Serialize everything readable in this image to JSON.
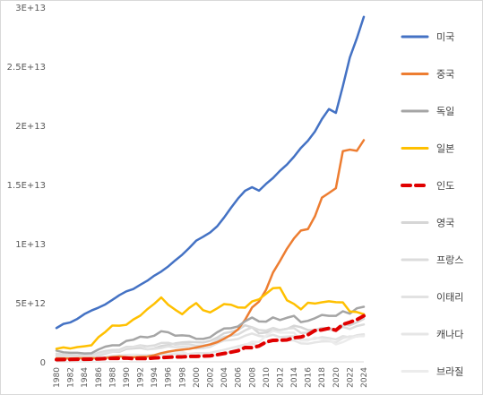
{
  "chart_data": {
    "type": "line",
    "title": "",
    "xlabel": "",
    "ylabel": "",
    "ylim": [
      0,
      30000000000000.0
    ],
    "y_ticks": [
      0,
      5000000000000.0,
      10000000000000.0,
      15000000000000.0,
      20000000000000.0,
      25000000000000.0,
      30000000000000.0
    ],
    "y_tick_labels": [
      "0",
      "5E+12",
      "1E+13",
      "1.5E+13",
      "2E+13",
      "2.5E+13",
      "3E+13"
    ],
    "grid": false,
    "legend_position": "right",
    "x": [
      1980,
      1981,
      1982,
      1983,
      1984,
      1985,
      1986,
      1987,
      1988,
      1989,
      1990,
      1991,
      1992,
      1993,
      1994,
      1995,
      1996,
      1997,
      1998,
      1999,
      2000,
      2001,
      2002,
      2003,
      2004,
      2005,
      2006,
      2007,
      2008,
      2009,
      2010,
      2011,
      2012,
      2013,
      2014,
      2015,
      2016,
      2017,
      2018,
      2019,
      2020,
      2021,
      2022,
      2023,
      2024
    ],
    "x_tick_labels": [
      "1980",
      "1982",
      "1984",
      "1986",
      "1988",
      "1990",
      "1992",
      "1994",
      "1996",
      "1998",
      "2000",
      "2002",
      "2004",
      "2006",
      "2008",
      "2010",
      "2012",
      "2014",
      "2016",
      "2018",
      "2020",
      "2022",
      "2024"
    ],
    "series": [
      {
        "name": "미국",
        "color": "#4472c4",
        "dashed": false,
        "values": [
          2860000000000.0,
          3210000000000.0,
          3340000000000.0,
          3640000000000.0,
          4040000000000.0,
          4340000000000.0,
          4580000000000.0,
          4860000000000.0,
          5240000000000.0,
          5640000000000.0,
          5960000000000.0,
          6160000000000.0,
          6520000000000.0,
          6860000000000.0,
          7290000000000.0,
          7640000000000.0,
          8070000000000.0,
          8580000000000.0,
          9060000000000.0,
          9630000000000.0,
          10250000000000.0,
          10580000000000.0,
          10940000000000.0,
          11460000000000.0,
          12210000000000.0,
          13040000000000.0,
          13820000000000.0,
          14470000000000.0,
          14770000000000.0,
          14480000000000.0,
          15050000000000.0,
          15550000000000.0,
          16160000000000.0,
          16690000000000.0,
          17350000000000.0,
          18100000000000.0,
          18700000000000.0,
          19480000000000.0,
          20530000000000.0,
          21380000000000.0,
          21060000000000.0,
          23320000000000.0,
          25740000000000.0,
          27360000000000.0,
          29180000000000.0
        ]
      },
      {
        "name": "중국",
        "color": "#ed7d31",
        "dashed": false,
        "values": [
          303000000000.0,
          294000000000.0,
          285000000000.0,
          303000000000.0,
          313000000000.0,
          310000000000.0,
          301000000000.0,
          327000000000.0,
          408000000000.0,
          457000000000.0,
          397000000000.0,
          385000000000.0,
          427000000000.0,
          444000000000.0,
          564000000000.0,
          734000000000.0,
          863000000000.0,
          962000000000.0,
          1029000000000.0,
          1094000000000.0,
          1211000000000.0,
          1339000000000.0,
          1471000000000.0,
          1660000000000.0,
          1955000000000.0,
          2286000000000.0,
          2752000000000.0,
          3550000000000.0,
          4594000000000.0,
          5102000000000.0,
          6087000000000.0,
          7552000000000.0,
          8532000000000.0,
          9571000000000.0,
          10440000000000.0,
          11110000000000.0,
          11230000000000.0,
          12310000000000.0,
          13890000000000.0,
          14280000000000.0,
          14690000000000.0,
          17820000000000.0,
          17950000000000.0,
          17850000000000.0,
          18750000000000.0
        ]
      },
      {
        "name": "독일",
        "color": "#a5a5a5",
        "dashed": false,
        "values": [
          950000000000.0,
          810000000000.0,
          770000000000.0,
          770000000000.0,
          710000000000.0,
          730000000000.0,
          1040000000000.0,
          1290000000000.0,
          1400000000000.0,
          1400000000000.0,
          1770000000000.0,
          1870000000000.0,
          2130000000000.0,
          2070000000000.0,
          2210000000000.0,
          2590000000000.0,
          2500000000000.0,
          2220000000000.0,
          2240000000000.0,
          2200000000000.0,
          1950000000000.0,
          1940000000000.0,
          2080000000000.0,
          2500000000000.0,
          2820000000000.0,
          2850000000000.0,
          3000000000000.0,
          3440000000000.0,
          3750000000000.0,
          3420000000000.0,
          3400000000000.0,
          3760000000000.0,
          3540000000000.0,
          3730000000000.0,
          3890000000000.0,
          3360000000000.0,
          3470000000000.0,
          3690000000000.0,
          3970000000000.0,
          3890000000000.0,
          3890000000000.0,
          4280000000000.0,
          4080000000000.0,
          4530000000000.0,
          4660000000000.0
        ]
      },
      {
        "name": "일본",
        "color": "#ffc000",
        "dashed": false,
        "values": [
          1110000000000.0,
          1220000000000.0,
          1130000000000.0,
          1250000000000.0,
          1320000000000.0,
          1400000000000.0,
          2080000000000.0,
          2530000000000.0,
          3070000000000.0,
          3060000000000.0,
          3130000000000.0,
          3580000000000.0,
          3910000000000.0,
          4450000000000.0,
          4910000000000.0,
          5450000000000.0,
          4830000000000.0,
          4410000000000.0,
          4030000000000.0,
          4560000000000.0,
          4970000000000.0,
          4370000000000.0,
          4180000000000.0,
          4520000000000.0,
          4890000000000.0,
          4830000000000.0,
          4600000000000.0,
          4580000000000.0,
          5110000000000.0,
          5290000000000.0,
          5760000000000.0,
          6230000000000.0,
          6270000000000.0,
          5210000000000.0,
          4900000000000.0,
          4440000000000.0,
          5000000000000.0,
          4930000000000.0,
          5040000000000.0,
          5120000000000.0,
          5050000000000.0,
          5030000000000.0,
          4260000000000.0,
          4210000000000.0,
          4030000000000.0
        ]
      },
      {
        "name": "인도",
        "color": "#e00000",
        "dashed": true,
        "values": [
          190000000000.0,
          196000000000.0,
          204000000000.0,
          222000000000.0,
          215000000000.0,
          232000000000.0,
          248000000000.0,
          279000000000.0,
          296000000000.0,
          296000000000.0,
          321000000000.0,
          270000000000.0,
          288000000000.0,
          279000000000.0,
          327000000000.0,
          360000000000.0,
          392000000000.0,
          415000000000.0,
          421000000000.0,
          458000000000.0,
          468000000000.0,
          485000000000.0,
          514000000000.0,
          607000000000.0,
          709000000000.0,
          820000000000.0,
          940000000000.0,
          1216000000000.0,
          1199000000000.0,
          1342000000000.0,
          1676000000000.0,
          1823000000000.0,
          1828000000000.0,
          1857000000000.0,
          2039000000000.0,
          2104000000000.0,
          2295000000000.0,
          2651000000000.0,
          2703000000000.0,
          2836000000000.0,
          2674000000000.0,
          3167000000000.0,
          3353000000000.0,
          3567000000000.0,
          3890000000000.0
        ]
      },
      {
        "name": "영국",
        "color": "#d6d6d6",
        "dashed": false,
        "values": [
          560000000000.0,
          540000000000.0,
          510000000000.0,
          470000000000.0,
          440000000000.0,
          460000000000.0,
          560000000000.0,
          700000000000.0,
          850000000000.0,
          850000000000.0,
          1090000000000.0,
          1140000000000.0,
          1180000000000.0,
          1060000000000.0,
          1140000000000.0,
          1340000000000.0,
          1420000000000.0,
          1560000000000.0,
          1650000000000.0,
          1690000000000.0,
          1660000000000.0,
          1640000000000.0,
          1780000000000.0,
          2050000000000.0,
          2420000000000.0,
          2540000000000.0,
          2710000000000.0,
          3090000000000.0,
          2920000000000.0,
          2410000000000.0,
          2480000000000.0,
          2660000000000.0,
          2700000000000.0,
          2780000000000.0,
          3060000000000.0,
          2930000000000.0,
          2690000000000.0,
          2680000000000.0,
          2870000000000.0,
          2860000000000.0,
          2700000000000.0,
          3140000000000.0,
          3090000000000.0,
          3340000000000.0,
          3640000000000.0
        ]
      },
      {
        "name": "프랑스",
        "color": "#dcdcdc",
        "dashed": false,
        "values": [
          700000000000.0,
          620000000000.0,
          580000000000.0,
          550000000000.0,
          530000000000.0,
          550000000000.0,
          770000000000.0,
          920000000000.0,
          1000000000000.0,
          1020000000000.0,
          1270000000000.0,
          1270000000000.0,
          1400000000000.0,
          1320000000000.0,
          1390000000000.0,
          1600000000000.0,
          1610000000000.0,
          1460000000000.0,
          1510000000000.0,
          1490000000000.0,
          1360000000000.0,
          1380000000000.0,
          1490000000000.0,
          1840000000000.0,
          2120000000000.0,
          2200000000000.0,
          2320000000000.0,
          2660000000000.0,
          2930000000000.0,
          2700000000000.0,
          2650000000000.0,
          2870000000000.0,
          2680000000000.0,
          2810000000000.0,
          2860000000000.0,
          2440000000000.0,
          2470000000000.0,
          2590000000000.0,
          2790000000000.0,
          2730000000000.0,
          2640000000000.0,
          2960000000000.0,
          2780000000000.0,
          3030000000000.0,
          3160000000000.0
        ]
      },
      {
        "name": "이태리",
        "color": "#e2e2e2",
        "dashed": false,
        "values": [
          480000000000.0,
          430000000000.0,
          430000000000.0,
          440000000000.0,
          440000000000.0,
          450000000000.0,
          620000000000.0,
          770000000000.0,
          850000000000.0,
          900000000000.0,
          1180000000000.0,
          1250000000000.0,
          1320000000000.0,
          1060000000000.0,
          1100000000000.0,
          1170000000000.0,
          1310000000000.0,
          1240000000000.0,
          1270000000000.0,
          1250000000000.0,
          1140000000000.0,
          1160000000000.0,
          1270000000000.0,
          1570000000000.0,
          1800000000000.0,
          1850000000000.0,
          1940000000000.0,
          2210000000000.0,
          2400000000000.0,
          2190000000000.0,
          2130000000000.0,
          2290000000000.0,
          2090000000000.0,
          2140000000000.0,
          2160000000000.0,
          1840000000000.0,
          1880000000000.0,
          1960000000000.0,
          2090000000000.0,
          2010000000000.0,
          1900000000000.0,
          2180000000000.0,
          2070000000000.0,
          2250000000000.0,
          2330000000000.0
        ]
      },
      {
        "name": "캐나다",
        "color": "#e6e6e6",
        "dashed": false,
        "values": [
          270000000000.0,
          300000000000.0,
          310000000000.0,
          340000000000.0,
          350000000000.0,
          360000000000.0,
          370000000000.0,
          430000000000.0,
          510000000000.0,
          560000000000.0,
          590000000000.0,
          610000000000.0,
          590000000000.0,
          580000000000.0,
          580000000000.0,
          600000000000.0,
          630000000000.0,
          650000000000.0,
          630000000000.0,
          670000000000.0,
          740000000000.0,
          740000000000.0,
          760000000000.0,
          890000000000.0,
          1020000000000.0,
          1170000000000.0,
          1320000000000.0,
          1470000000000.0,
          1550000000000.0,
          1370000000000.0,
          1620000000000.0,
          1790000000000.0,
          1830000000000.0,
          1850000000000.0,
          1810000000000.0,
          1560000000000.0,
          1530000000000.0,
          1650000000000.0,
          1720000000000.0,
          1740000000000.0,
          1650000000000.0,
          2000000000000.0,
          2160000000000.0,
          2140000000000.0,
          2240000000000.0
        ]
      },
      {
        "name": "브라질",
        "color": "#ececec",
        "dashed": false,
        "values": [
          240000000000.0,
          260000000000.0,
          280000000000.0,
          200000000000.0,
          200000000000.0,
          220000000000.0,
          270000000000.0,
          290000000000.0,
          330000000000.0,
          440000000000.0,
          460000000000.0,
          600000000000.0,
          400000000000.0,
          440000000000.0,
          560000000000.0,
          770000000000.0,
          850000000000.0,
          880000000000.0,
          860000000000.0,
          600000000000.0,
          660000000000.0,
          560000000000.0,
          510000000000.0,
          560000000000.0,
          670000000000.0,
          890000000000.0,
          1110000000000.0,
          1400000000000.0,
          1700000000000.0,
          1670000000000.0,
          2210000000000.0,
          2620000000000.0,
          2470000000000.0,
          2470000000000.0,
          2460000000000.0,
          1800000000000.0,
          1800000000000.0,
          2060000000000.0,
          1920000000000.0,
          1870000000000.0,
          1480000000000.0,
          1670000000000.0,
          1950000000000.0,
          2170000000000.0,
          2170000000000.0
        ]
      }
    ]
  }
}
